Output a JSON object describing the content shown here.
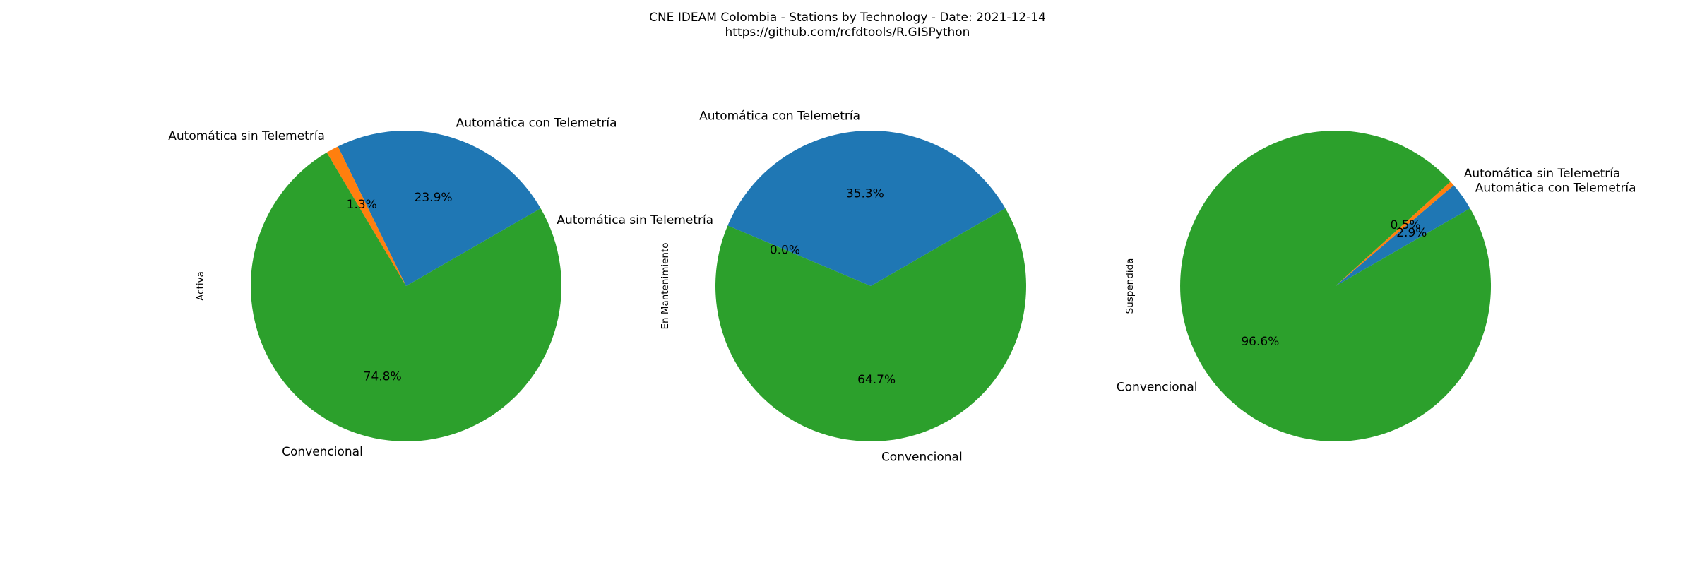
{
  "figure": {
    "title_line1": "CNE IDEAM Colombia -  Stations by Technology - Date: 2021-12-14",
    "title_line2": "https://github.com/rcfdtools/R.GISPython"
  },
  "colors": {
    "Automática con Telemetría": "#1f77b4",
    "Automática sin Telemetría": "#ff7f0e",
    "Convencional": "#2ca02c"
  },
  "chart_data": [
    {
      "type": "pie",
      "ylabel": "Activa",
      "slices": [
        {
          "label": "Automática con Telemetría",
          "value": 23.9,
          "pct_text": "23.9%"
        },
        {
          "label": "Automática sin Telemetría",
          "value": 1.3,
          "pct_text": "1.3%"
        },
        {
          "label": "Convencional",
          "value": 74.8,
          "pct_text": "74.8%"
        }
      ],
      "startangle_deg": 30,
      "direction": "counterclockwise"
    },
    {
      "type": "pie",
      "ylabel": "En Mantenimiento",
      "slices": [
        {
          "label": "Automática con Telemetría",
          "value": 35.3,
          "pct_text": "35.3%"
        },
        {
          "label": "Automática sin Telemetría",
          "value": 0.0,
          "pct_text": "0.0%"
        },
        {
          "label": "Convencional",
          "value": 64.7,
          "pct_text": "64.7%"
        }
      ],
      "startangle_deg": 30,
      "direction": "counterclockwise"
    },
    {
      "type": "pie",
      "ylabel": "Suspendida",
      "slices": [
        {
          "label": "Automática con Telemetría",
          "value": 2.9,
          "pct_text": "2.9%"
        },
        {
          "label": "Automática sin Telemetría",
          "value": 0.5,
          "pct_text": "0.5%"
        },
        {
          "label": "Convencional",
          "value": 96.6,
          "pct_text": "96.6%"
        }
      ],
      "startangle_deg": 30,
      "direction": "counterclockwise"
    }
  ]
}
